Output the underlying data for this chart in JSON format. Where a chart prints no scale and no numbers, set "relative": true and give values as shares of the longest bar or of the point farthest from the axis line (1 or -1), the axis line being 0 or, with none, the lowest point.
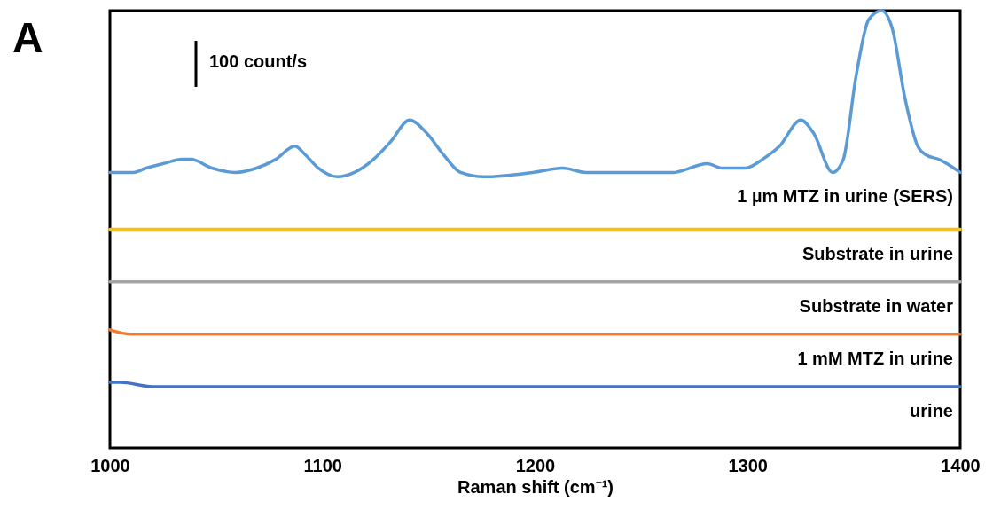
{
  "chart_data": {
    "type": "line",
    "relative": true,
    "xlabel": "Raman shift (cm⁻¹)",
    "xlim": [
      1000,
      1400
    ],
    "xticks": [
      1000,
      1100,
      1200,
      1300,
      1400
    ],
    "grid": false,
    "legend": false,
    "tick_labels": "x",
    "annotations": [
      "A",
      "100 count/s"
    ],
    "series": [
      {
        "name": "1 µm MTZ in urine (SERS)",
        "color": "#5b9bd5",
        "x": [
          1000,
          1011,
          1017,
          1025,
          1034,
          1038,
          1048,
          1059,
          1069,
          1078,
          1087,
          1092,
          1098,
          1107,
          1115,
          1124,
          1132,
          1141,
          1149,
          1157,
          1165,
          1176,
          1199,
          1213,
          1224,
          1240,
          1265,
          1281,
          1288,
          1299,
          1307,
          1315,
          1325,
          1331,
          1340,
          1345,
          1351,
          1357,
          1363,
          1368,
          1374,
          1380,
          1384,
          1390,
          1400
        ],
        "values": [
          0.63,
          0.63,
          0.64,
          0.65,
          0.66,
          0.66,
          0.64,
          0.63,
          0.64,
          0.66,
          0.69,
          0.67,
          0.64,
          0.62,
          0.63,
          0.66,
          0.7,
          0.75,
          0.72,
          0.67,
          0.63,
          0.62,
          0.63,
          0.64,
          0.63,
          0.63,
          0.63,
          0.65,
          0.64,
          0.64,
          0.66,
          0.69,
          0.75,
          0.72,
          0.63,
          0.66,
          0.85,
          0.98,
          1.0,
          0.96,
          0.8,
          0.69,
          0.67,
          0.66,
          0.63
        ]
      },
      {
        "name": "Substrate in urine",
        "color": "#ffc000",
        "x": [
          1000,
          1100,
          1200,
          1300,
          1400
        ],
        "values": [
          0.5,
          0.5,
          0.5,
          0.5,
          0.5
        ]
      },
      {
        "name": "Substrate in water",
        "color": "#a5a5a5",
        "x": [
          1000,
          1100,
          1200,
          1300,
          1400
        ],
        "values": [
          0.38,
          0.38,
          0.38,
          0.38,
          0.38
        ]
      },
      {
        "name": "1 mM MTZ in urine",
        "color": "#ed7d31",
        "x": [
          1000,
          1010,
          1100,
          1200,
          1300,
          1400
        ],
        "values": [
          0.27,
          0.26,
          0.26,
          0.26,
          0.26,
          0.26
        ]
      },
      {
        "name": "urine",
        "color": "#4472c4",
        "x": [
          1000,
          1005,
          1020,
          1100,
          1200,
          1300,
          1340,
          1400
        ],
        "values": [
          0.15,
          0.15,
          0.14,
          0.14,
          0.14,
          0.14,
          0.14,
          0.14
        ]
      }
    ]
  }
}
